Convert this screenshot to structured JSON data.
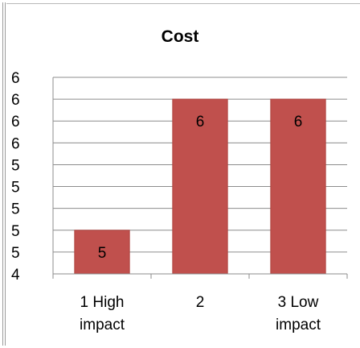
{
  "chart_data": {
    "type": "bar",
    "title": "Cost",
    "categories": [
      "1 High impact",
      "2",
      "3 Low impact"
    ],
    "category_lines": [
      [
        "1 High",
        "impact"
      ],
      [
        "2"
      ],
      [
        "3 Low",
        "impact"
      ]
    ],
    "values": [
      5,
      6,
      6
    ],
    "data_labels": [
      "5",
      "6",
      "6"
    ],
    "y_tick_labels": [
      "4",
      "5",
      "5",
      "5",
      "5",
      "5",
      "6",
      "6",
      "6",
      "6"
    ],
    "ylim": [
      4,
      6
    ],
    "bar_fill_fraction": [
      0.222,
      0.889,
      0.889
    ],
    "grid": true,
    "legend": "none",
    "colors": {
      "bar": "#c0504d",
      "bar_edge": "#b04541",
      "grid": "#8c8c8c",
      "axis": "#8c8c8c"
    }
  }
}
